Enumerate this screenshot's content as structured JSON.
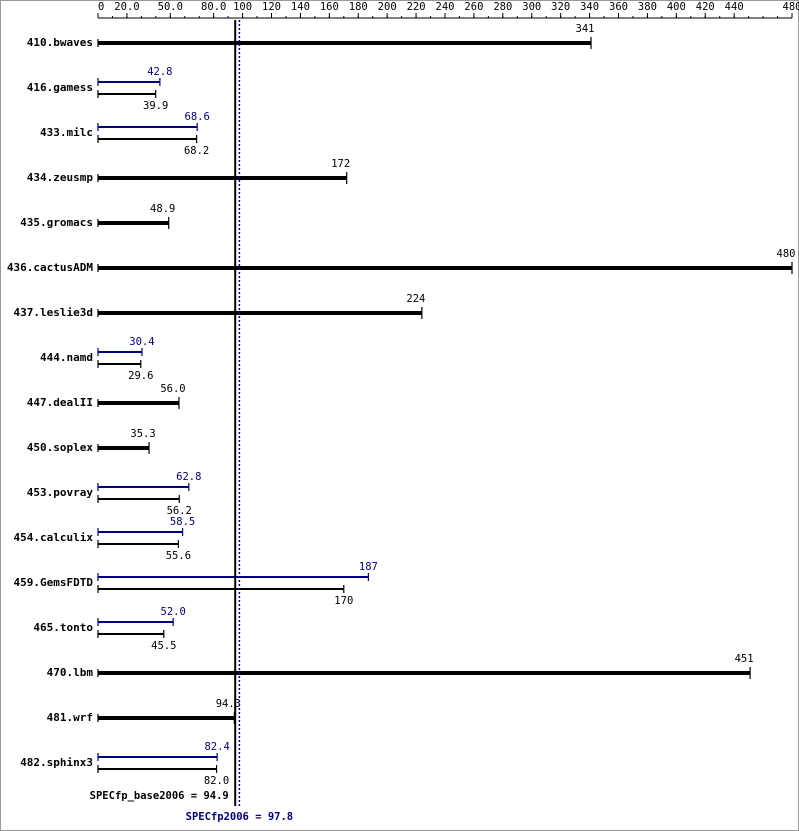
{
  "chart_data": {
    "type": "bar",
    "categories": [
      "410.bwaves",
      "416.gamess",
      "433.milc",
      "434.zeusmp",
      "435.gromacs",
      "436.cactusADM",
      "437.leslie3d",
      "444.namd",
      "447.dealII",
      "450.soplex",
      "453.povray",
      "454.calculix",
      "459.GemsFDTD",
      "465.tonto",
      "470.lbm",
      "481.wrf",
      "482.sphinx3"
    ],
    "series": [
      {
        "color": "#000080",
        "values": [
          null,
          42.8,
          68.6,
          null,
          null,
          null,
          null,
          30.4,
          null,
          null,
          62.8,
          58.5,
          187,
          52.0,
          null,
          null,
          82.4
        ],
        "value_labels": [
          null,
          "42.8",
          "68.6",
          null,
          null,
          null,
          null,
          "30.4",
          null,
          null,
          "62.8",
          "58.5",
          "187",
          "52.0",
          null,
          null,
          "82.4"
        ]
      },
      {
        "color": "#000000",
        "values": [
          341,
          39.9,
          68.2,
          172,
          48.9,
          480,
          224,
          29.6,
          56.0,
          35.3,
          56.2,
          55.6,
          170,
          45.5,
          451,
          94.3,
          82.0
        ],
        "value_labels": [
          "341",
          "39.9",
          "68.2",
          "172",
          "48.9",
          "480",
          "224",
          "29.6",
          "56.0",
          "35.3",
          "56.2",
          "55.6",
          "170",
          "45.5",
          "451",
          "94.3",
          "82.0"
        ]
      }
    ],
    "xlim": [
      0,
      480
    ],
    "xticks": [
      0,
      {
        "value": 20,
        "label": "20.0"
      },
      {
        "value": 50,
        "label": "50.0"
      },
      {
        "value": 80,
        "label": "80.0"
      },
      100,
      120,
      140,
      160,
      180,
      200,
      220,
      240,
      260,
      280,
      300,
      320,
      340,
      360,
      380,
      400,
      420,
      440,
      480
    ],
    "reference_lines": [
      {
        "label": "SPECfp_base2006 = 94.9",
        "value": 94.9,
        "color": "#000000"
      },
      {
        "label": "SPECfp2006 = 97.8",
        "value": 97.8,
        "color": "#000080"
      }
    ]
  }
}
